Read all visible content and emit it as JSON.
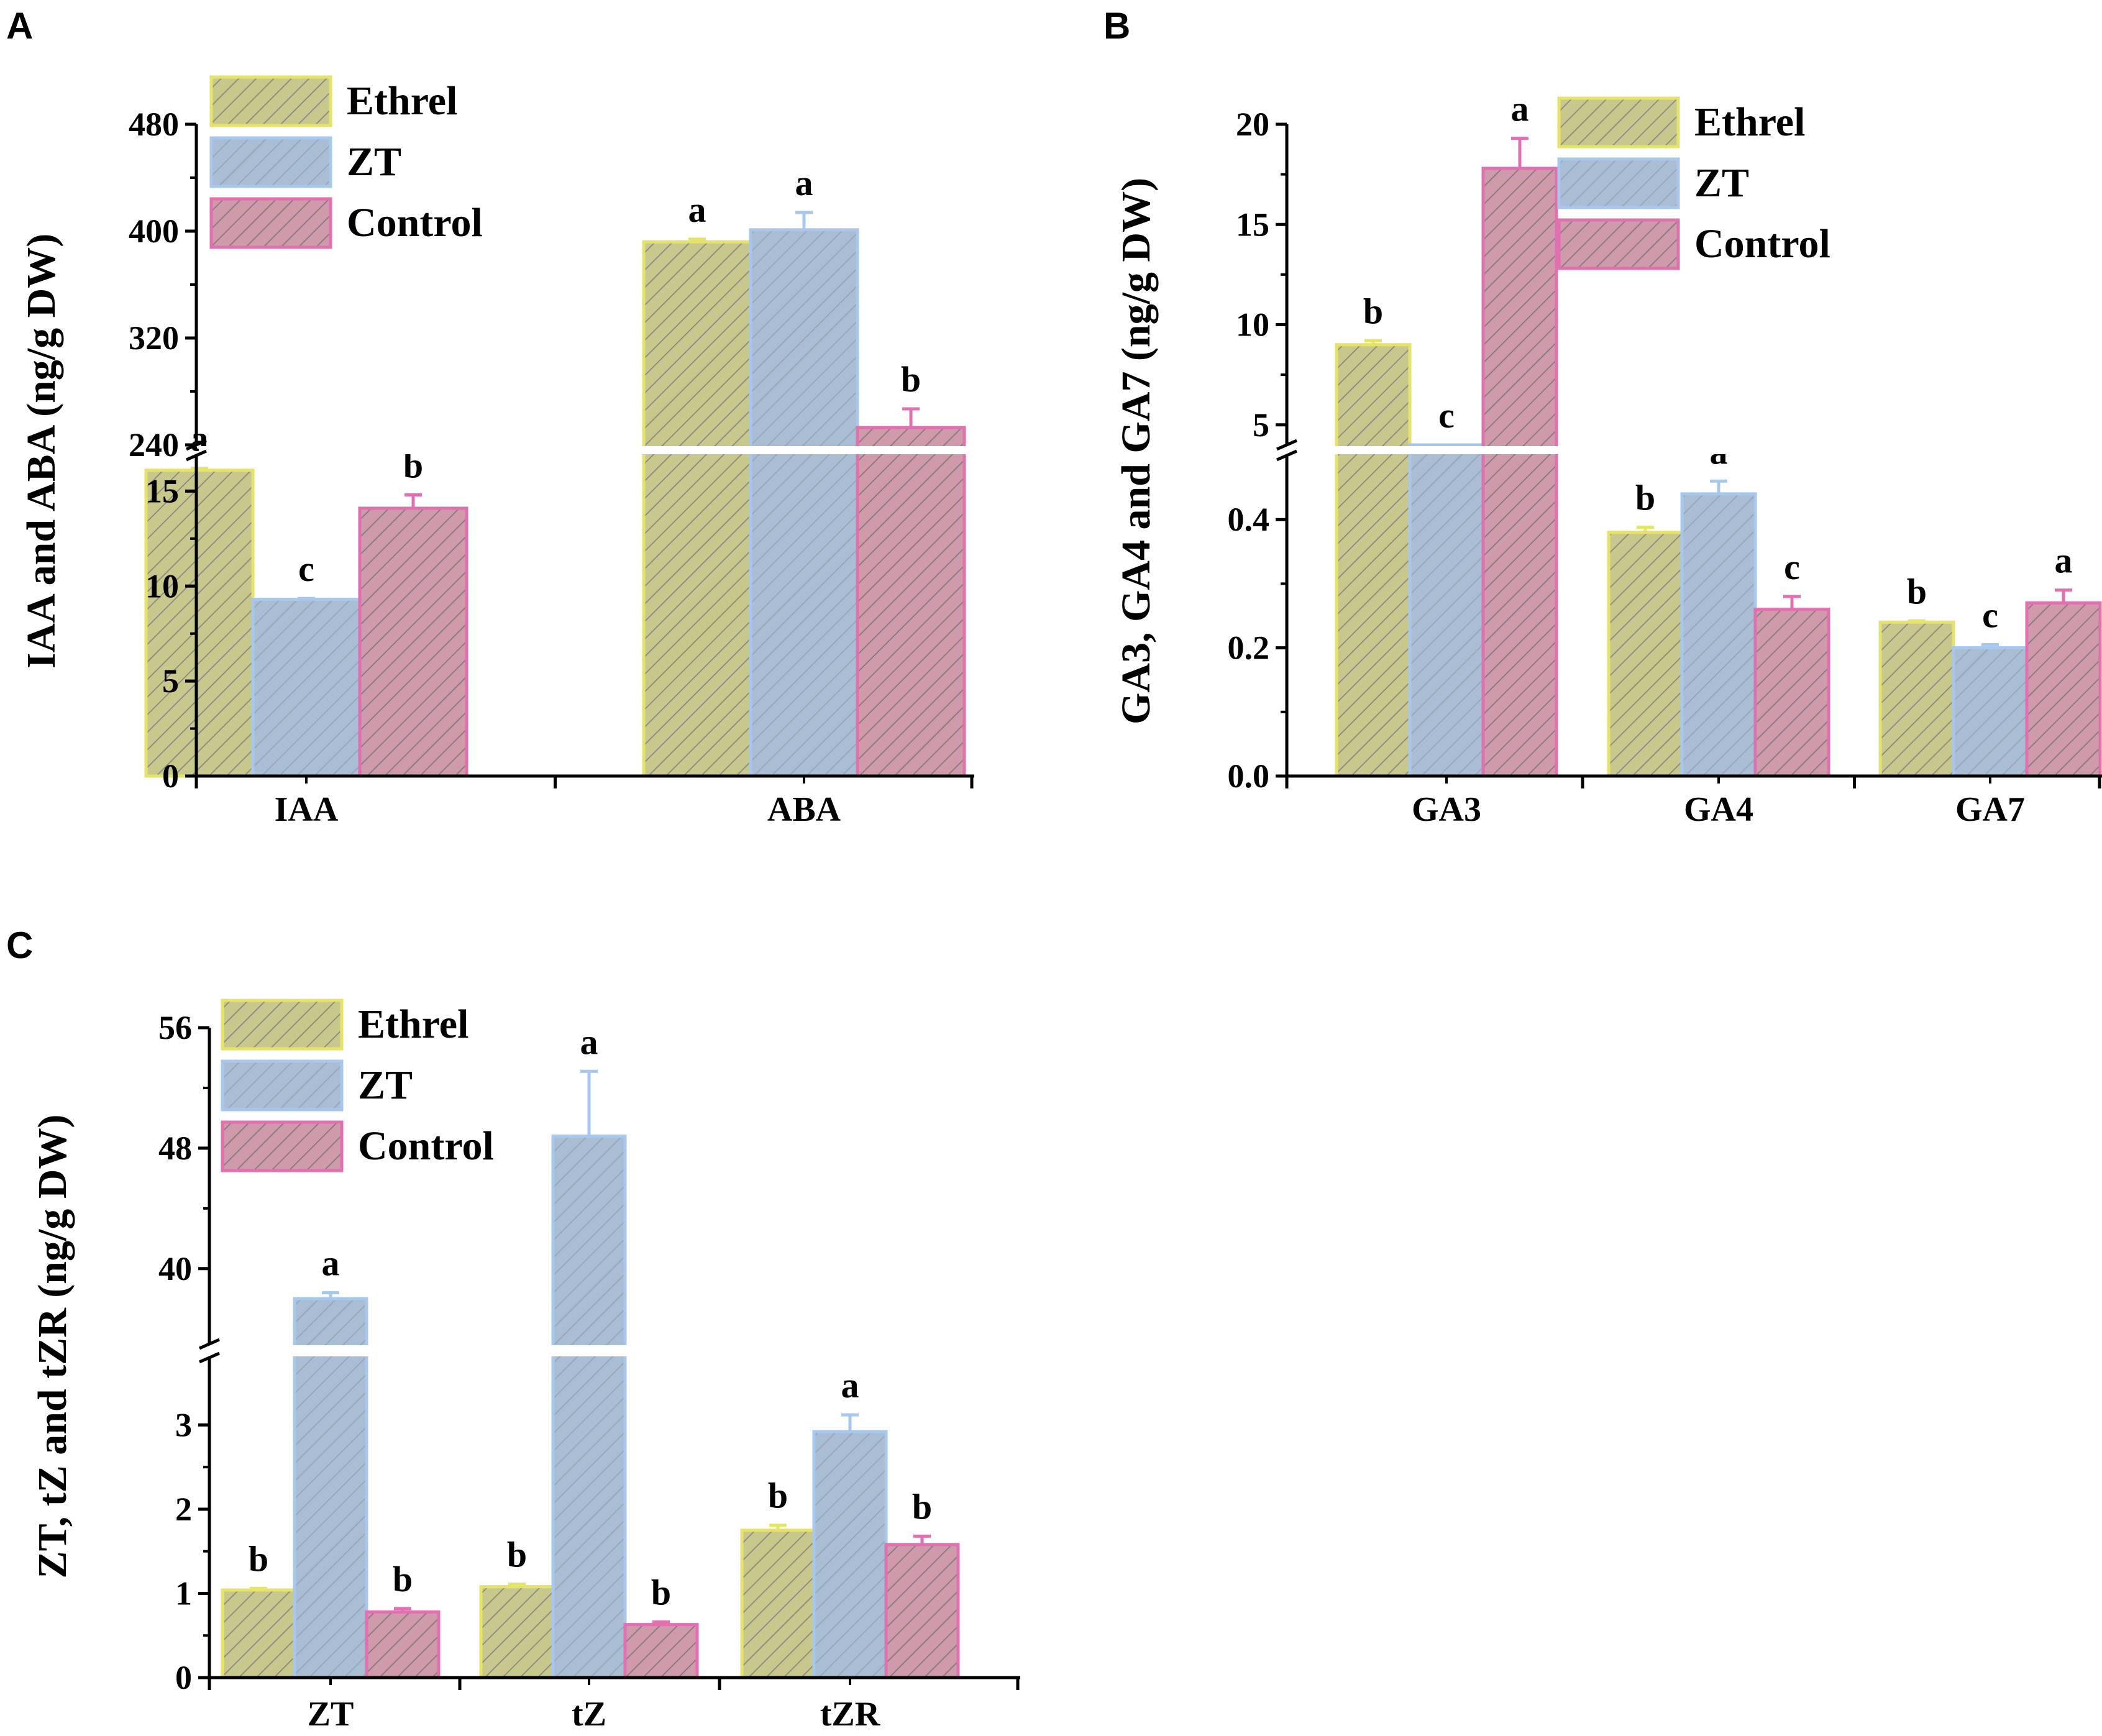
{
  "colors": {
    "background": "#ffffff",
    "axis": "#000000",
    "Ethrel": {
      "fill": "#c9c88c",
      "stroke": "#e6e36a",
      "hatch": "#8f8f86"
    },
    "ZT": {
      "fill": "#a9bdd4",
      "stroke": "#a8c7ec",
      "hatch": "#9aa7b8"
    },
    "Control": {
      "fill": "#cf9aaa",
      "stroke": "#e070b0",
      "hatch": "#8c7c84"
    }
  },
  "legend_labels": [
    "Ethrel",
    "ZT",
    "Control"
  ],
  "chart_data": [
    {
      "id": "A",
      "panel_label": "A",
      "type": "bar",
      "broken_axis": true,
      "ylabel": "IAA and ABA (ng/g DW)",
      "categories": [
        "IAA",
        "ABA"
      ],
      "series": [
        {
          "name": "Ethrel",
          "values": [
            16.1,
            392
          ],
          "errors": [
            0.1,
            2
          ],
          "letters": [
            "a",
            "a"
          ]
        },
        {
          "name": "ZT",
          "values": [
            9.3,
            401
          ],
          "errors": [
            0.05,
            13
          ],
          "letters": [
            "c",
            "a"
          ]
        },
        {
          "name": "Control",
          "values": [
            14.1,
            253
          ],
          "errors": [
            0.7,
            14
          ],
          "letters": [
            "b",
            "b"
          ]
        }
      ],
      "lower_axis": {
        "ylim": [
          0,
          17.5
        ],
        "ticks": [
          0,
          5,
          10,
          15
        ],
        "tick_labels": [
          "0",
          "5",
          "10",
          "15"
        ]
      },
      "upper_axis": {
        "ylim": [
          240,
          480
        ],
        "ticks": [
          240,
          320,
          400,
          480
        ],
        "tick_labels": [
          "240",
          "320",
          "400",
          "480"
        ]
      },
      "legend": "top-left"
    },
    {
      "id": "B",
      "panel_label": "B",
      "type": "bar",
      "broken_axis": true,
      "ylabel": "GA3, GA4 and GA7 (ng/g DW)",
      "categories": [
        "GA3",
        "GA4",
        "GA7"
      ],
      "series": [
        {
          "name": "Ethrel",
          "values": [
            9.0,
            0.38,
            0.24
          ],
          "errors": [
            0.2,
            0.008,
            0.002
          ],
          "letters": [
            "b",
            "b",
            "b"
          ]
        },
        {
          "name": "ZT",
          "values": [
            4.0,
            0.44,
            0.2
          ],
          "errors": [
            0,
            0.02,
            0.005
          ],
          "letters": [
            "c",
            "a",
            "c"
          ]
        },
        {
          "name": "Control",
          "values": [
            17.8,
            0.26,
            0.27
          ],
          "errors": [
            1.5,
            0.02,
            0.02
          ],
          "letters": [
            "a",
            "c",
            "a"
          ]
        }
      ],
      "lower_axis": {
        "ylim": [
          0,
          0.5
        ],
        "ticks": [
          0.0,
          0.2,
          0.4
        ],
        "tick_labels": [
          "0.0",
          "0.2",
          "0.4"
        ]
      },
      "upper_axis": {
        "ylim": [
          4,
          20
        ],
        "ticks": [
          5,
          10,
          15,
          20
        ],
        "tick_labels": [
          "5",
          "10",
          "15",
          "20"
        ]
      },
      "legend": "top-right"
    },
    {
      "id": "C",
      "panel_label": "C",
      "type": "bar",
      "broken_axis": true,
      "ylabel": "ZT, tZ and tZR (ng/g DW)",
      "categories": [
        "ZT",
        "tZ",
        "tZR"
      ],
      "series": [
        {
          "name": "Ethrel",
          "values": [
            1.04,
            1.08,
            1.75
          ],
          "errors": [
            0.02,
            0.03,
            0.06
          ],
          "letters": [
            "b",
            "b",
            "b"
          ]
        },
        {
          "name": "ZT",
          "values": [
            38.0,
            48.8,
            2.92
          ],
          "errors": [
            0.4,
            4.3,
            0.2
          ],
          "letters": [
            "a",
            "a",
            "a"
          ]
        },
        {
          "name": "Control",
          "values": [
            0.78,
            0.63,
            1.58
          ],
          "errors": [
            0.04,
            0.03,
            0.1
          ],
          "letters": [
            "b",
            "b",
            "b"
          ]
        }
      ],
      "lower_axis": {
        "ylim": [
          0,
          3.8
        ],
        "ticks": [
          0,
          1,
          2,
          3
        ],
        "tick_labels": [
          "0",
          "1",
          "2",
          "3"
        ]
      },
      "upper_axis": {
        "ylim": [
          35,
          56
        ],
        "ticks": [
          40,
          48,
          56
        ],
        "tick_labels": [
          "40",
          "48",
          "56"
        ]
      },
      "legend": "top-left"
    }
  ]
}
